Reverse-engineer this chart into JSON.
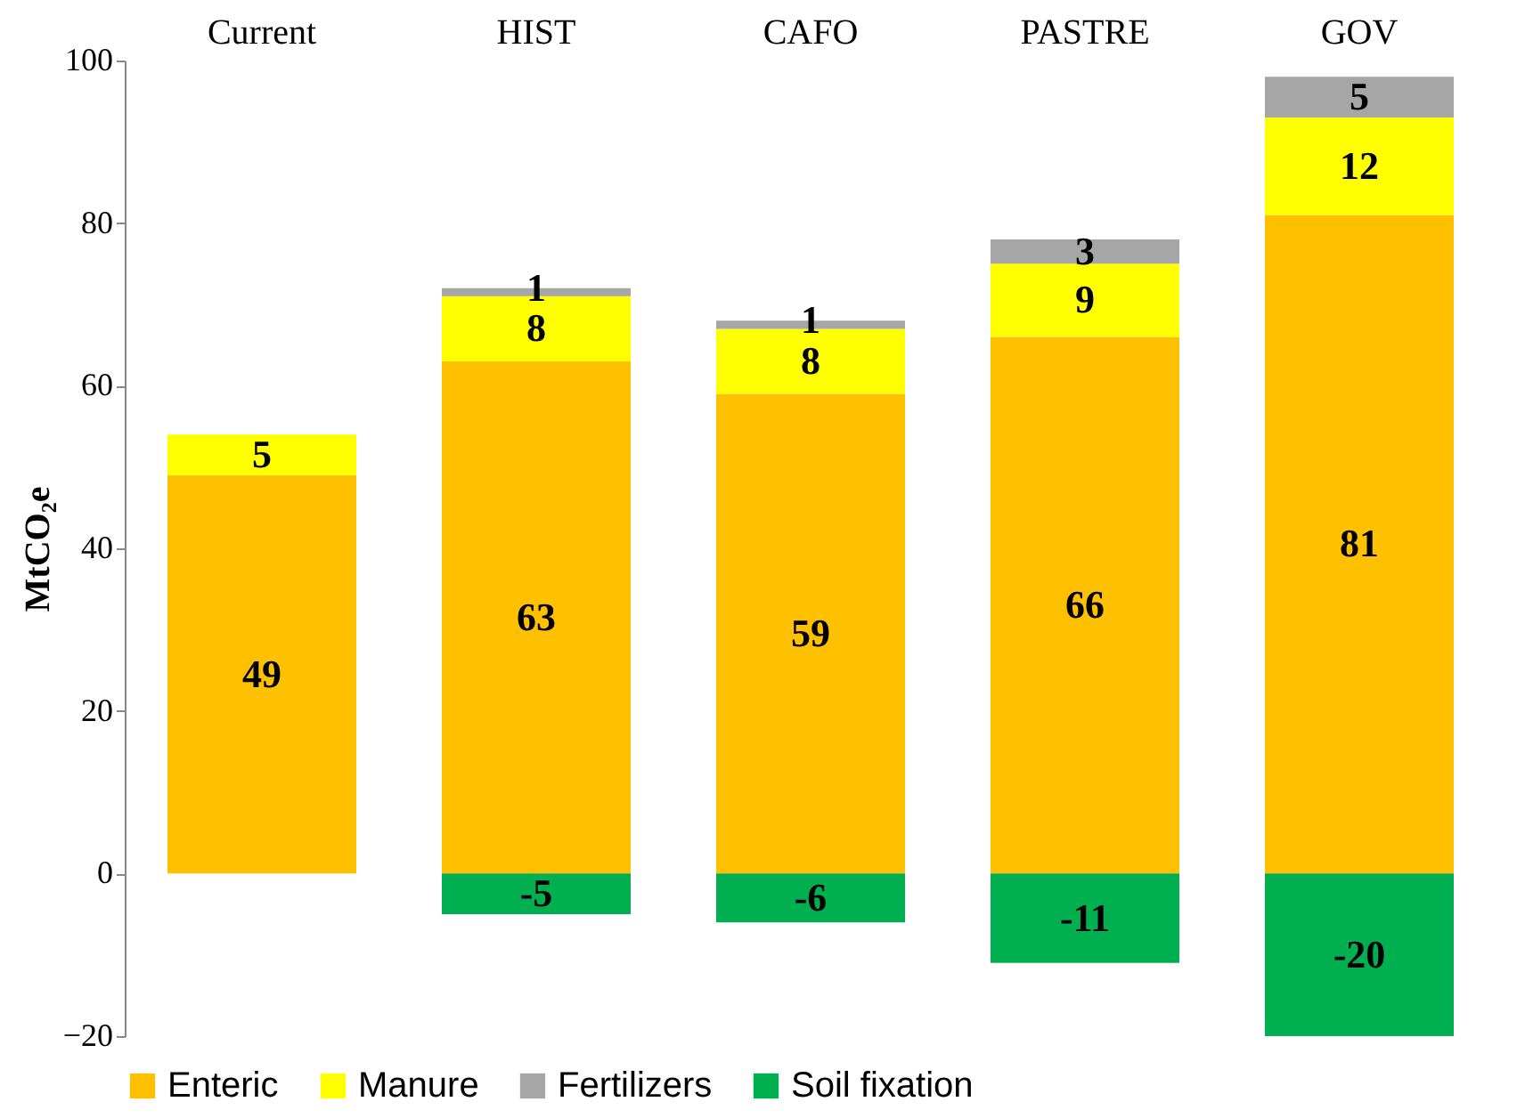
{
  "chart_data": {
    "type": "bar",
    "stacked": true,
    "ylabel": "MtCO₂e",
    "categories": [
      "Current",
      "HIST",
      "CAFO",
      "PASTRE",
      "GOV"
    ],
    "series": [
      {
        "name": "Enteric",
        "color": "#ffc000",
        "values": [
          49,
          63,
          59,
          66,
          81
        ]
      },
      {
        "name": "Manure",
        "color": "#ffff00",
        "values": [
          5,
          8,
          8,
          9,
          12
        ]
      },
      {
        "name": "Fertilizers",
        "color": "#a6a6a6",
        "values": [
          null,
          1,
          1,
          3,
          5
        ]
      },
      {
        "name": "Soil fixation",
        "color": "#00b050",
        "values": [
          null,
          -5,
          -6,
          -11,
          -20
        ]
      }
    ],
    "ylim": [
      -20,
      100
    ],
    "yticks": [
      -20,
      0,
      20,
      40,
      60,
      80,
      100
    ],
    "grid": false,
    "legend": "bottom",
    "data_labels": true
  }
}
